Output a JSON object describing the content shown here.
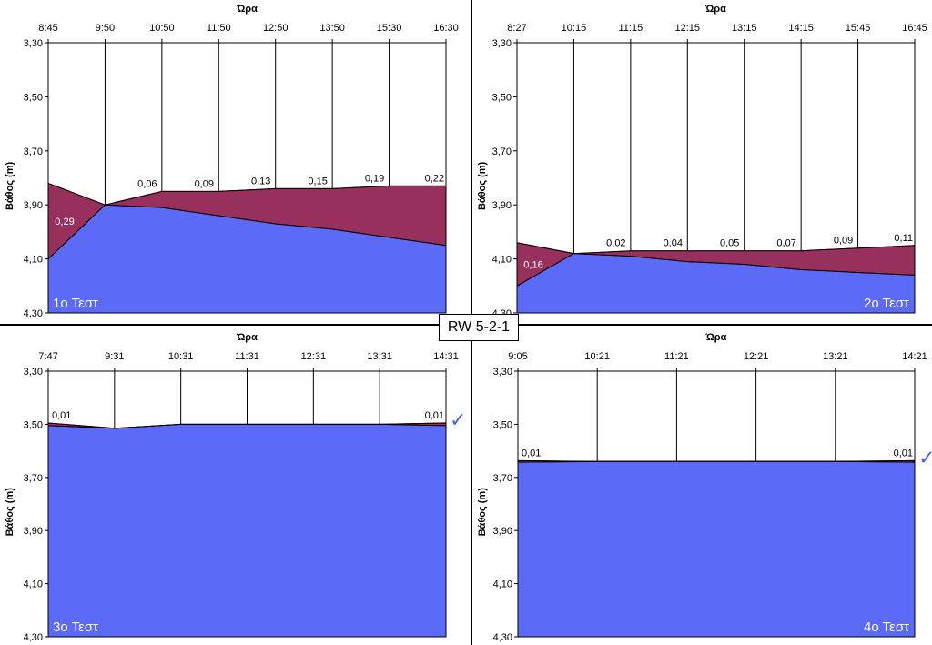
{
  "center_label": "RW 5-2-1",
  "colors": {
    "water": "#5b6bf8",
    "drawdown": "#98305e",
    "drawdown_line": "#800000"
  },
  "chart_data": [
    {
      "type": "area",
      "test_label": "1ο Τεστ",
      "xlabel": "Ώρα",
      "ylabel": "Βάθος (m)",
      "y_ticks": [
        "3,30",
        "3,50",
        "3,70",
        "3,90",
        "4,10",
        "4,30"
      ],
      "ylim": [
        4.3,
        3.3
      ],
      "y_inverted": true,
      "x": [
        "8:45",
        "9:50",
        "10:50",
        "11:50",
        "12:50",
        "13:50",
        "15:30",
        "16:30"
      ],
      "series": [
        {
          "values": [
            3.82,
            3.9,
            3.85,
            3.85,
            3.84,
            3.84,
            3.83,
            3.83
          ]
        },
        {
          "values": [
            4.1,
            3.9,
            3.91,
            3.94,
            3.97,
            3.99,
            4.02,
            4.05
          ]
        }
      ],
      "labels": [
        "0,29",
        "",
        "0,06",
        "0,09",
        "0,13",
        "0,15",
        "0,19",
        "0,22"
      ],
      "check_mark": false
    },
    {
      "type": "area",
      "test_label": "2ο Τεστ",
      "xlabel": "Ώρα",
      "ylabel": "Βάθος (m)",
      "y_ticks": [
        "3,30",
        "3,50",
        "3,70",
        "3,90",
        "4,10",
        "4,30"
      ],
      "ylim": [
        4.3,
        3.3
      ],
      "y_inverted": true,
      "x": [
        "8:27",
        "10:15",
        "11:15",
        "12:15",
        "13:15",
        "14:15",
        "15:45",
        "16:45"
      ],
      "series": [
        {
          "values": [
            4.04,
            4.08,
            4.07,
            4.07,
            4.07,
            4.07,
            4.06,
            4.05
          ]
        },
        {
          "values": [
            4.2,
            4.08,
            4.09,
            4.11,
            4.12,
            4.14,
            4.15,
            4.16
          ]
        }
      ],
      "labels": [
        "0,16",
        "",
        "0,02",
        "0,04",
        "0,05",
        "0,07",
        "0,09",
        "0,11"
      ],
      "check_mark": false
    },
    {
      "type": "area",
      "test_label": "3ο Τεστ",
      "xlabel": "Ώρα",
      "ylabel": "Βάθος (m)",
      "y_ticks": [
        "3,30",
        "3,50",
        "3,70",
        "3,90",
        "4,10",
        "4,30"
      ],
      "ylim": [
        4.3,
        3.3
      ],
      "y_inverted": true,
      "x": [
        "7:47",
        "9:31",
        "10:31",
        "11:31",
        "12:31",
        "13:31",
        "14:31"
      ],
      "series": [
        {
          "values": [
            3.495,
            3.515,
            3.5,
            3.5,
            3.5,
            3.5,
            3.495
          ]
        },
        {
          "values": [
            3.505,
            3.515,
            3.5,
            3.5,
            3.5,
            3.5,
            3.505
          ]
        }
      ],
      "labels": [
        "0,01",
        "",
        "",
        "",
        "",
        "",
        "0,01"
      ],
      "check_mark": true
    },
    {
      "type": "area",
      "test_label": "4ο Τεστ",
      "xlabel": "Ώρα",
      "ylabel": "Βάθος (m)",
      "y_ticks": [
        "3,30",
        "3,50",
        "3,70",
        "3,90",
        "4,10",
        "4,30"
      ],
      "ylim": [
        4.3,
        3.3
      ],
      "y_inverted": true,
      "x": [
        "9:05",
        "10:21",
        "11:21",
        "12:21",
        "13:21",
        "14:21"
      ],
      "series": [
        {
          "values": [
            3.637,
            3.64,
            3.64,
            3.64,
            3.64,
            3.637
          ]
        },
        {
          "values": [
            3.643,
            3.64,
            3.64,
            3.64,
            3.64,
            3.643
          ]
        }
      ],
      "labels": [
        "0,01",
        "",
        "",
        "",
        "",
        "0,01"
      ],
      "check_mark": true
    }
  ]
}
